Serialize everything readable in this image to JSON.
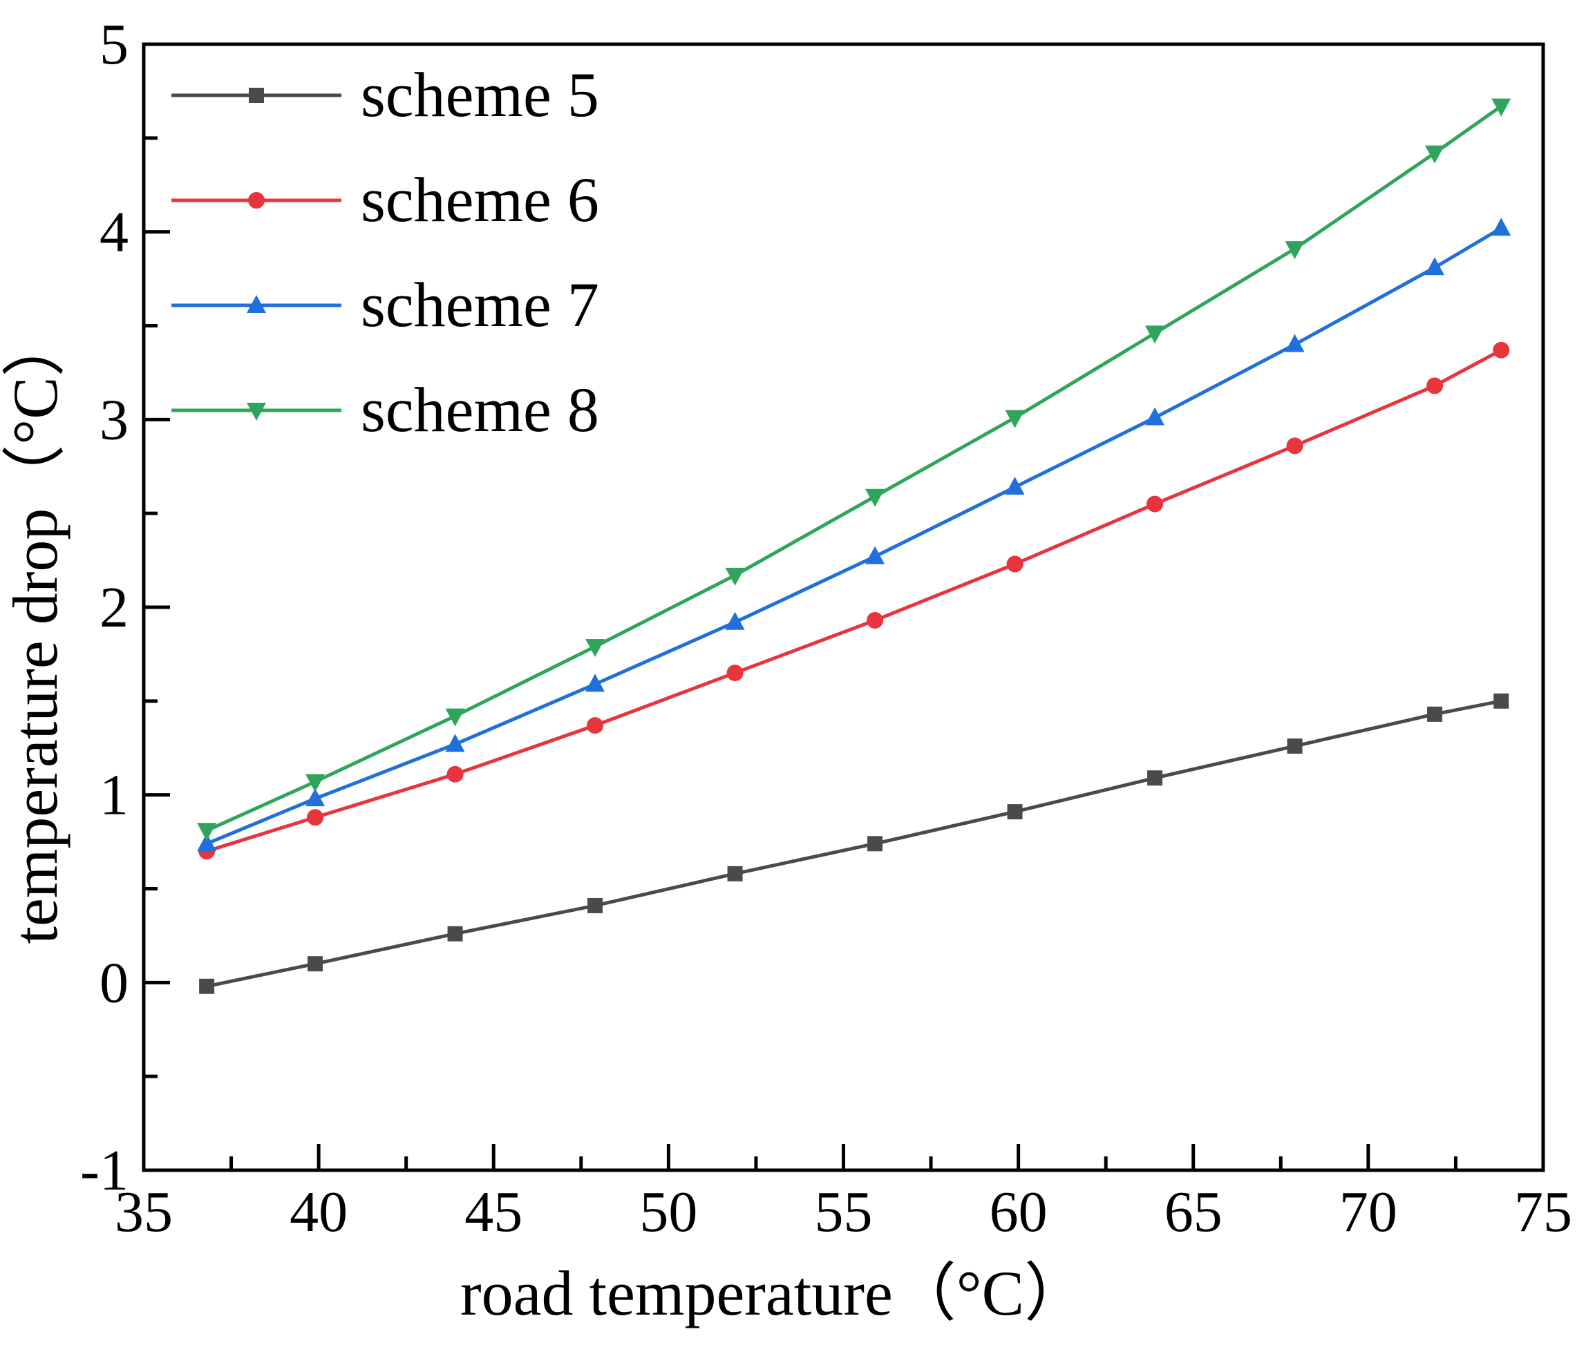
{
  "chart_data": {
    "type": "line",
    "title": "",
    "xlabel": "road temperature（°C）",
    "ylabel": "temperature drop（°C）",
    "xlim": [
      35,
      75
    ],
    "ylim": [
      -1,
      5
    ],
    "xticks": [
      35,
      40,
      45,
      50,
      55,
      60,
      65,
      70,
      75
    ],
    "xtick_labels": [
      "35",
      "40",
      "45",
      "50",
      "55",
      "60",
      "65",
      "70",
      "75"
    ],
    "yticks": [
      -1,
      0,
      1,
      2,
      3,
      4,
      5
    ],
    "ytick_labels": [
      "-1",
      "0",
      "1",
      "2",
      "3",
      "4",
      "5"
    ],
    "x": [
      36.8,
      39.9,
      43.9,
      47.9,
      51.9,
      55.9,
      59.9,
      63.9,
      67.9,
      71.9,
      73.8
    ],
    "series": [
      {
        "name": "scheme 5",
        "color": "#4a4a4a",
        "marker": "square",
        "values": [
          -0.02,
          0.1,
          0.26,
          0.41,
          0.58,
          0.74,
          0.91,
          1.09,
          1.26,
          1.43,
          1.5
        ]
      },
      {
        "name": "scheme 6",
        "color": "#e8343c",
        "marker": "circle",
        "values": [
          0.7,
          0.88,
          1.11,
          1.37,
          1.65,
          1.93,
          2.23,
          2.55,
          2.86,
          3.18,
          3.37
        ]
      },
      {
        "name": "scheme 7",
        "color": "#1f6fdc",
        "marker": "triangle-up",
        "values": [
          0.74,
          0.98,
          1.27,
          1.59,
          1.92,
          2.27,
          2.64,
          3.01,
          3.4,
          3.81,
          4.02
        ]
      },
      {
        "name": "scheme 8",
        "color": "#2ea55a",
        "marker": "triangle-down",
        "values": [
          0.81,
          1.07,
          1.42,
          1.79,
          2.17,
          2.59,
          3.01,
          3.46,
          3.91,
          4.42,
          4.67
        ]
      }
    ],
    "legend_position": "top-left",
    "grid": false
  }
}
